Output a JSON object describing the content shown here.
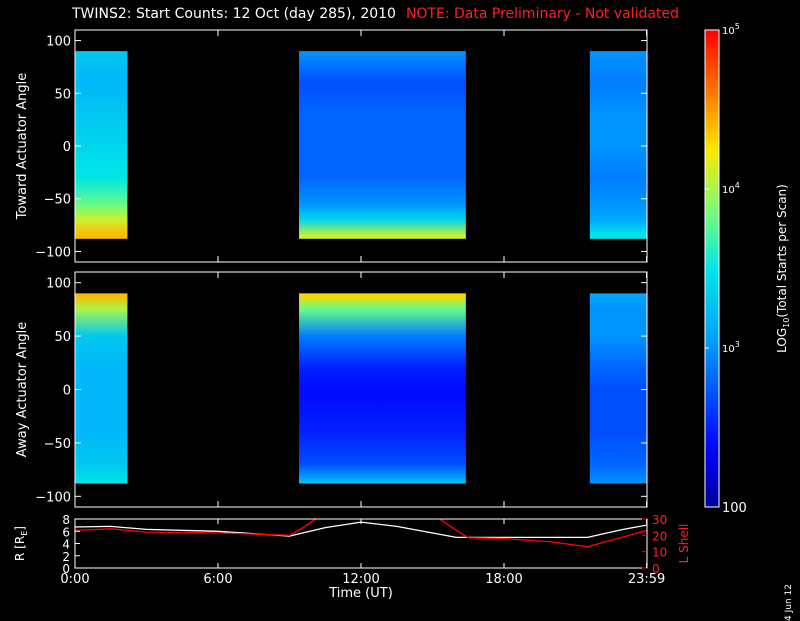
{
  "header": {
    "title": "TWINS2: Start Counts: 12 Oct (day 285), 2010",
    "note": "NOTE: Data Preliminary - Not validated"
  },
  "footer": {
    "date_stamp": "4 Jun 12"
  },
  "colors": {
    "background": "#000000",
    "axes": "#ffffff",
    "note": "#ff2020",
    "r_line": "#ffffff",
    "l_shell_line": "#ff0000"
  },
  "chart_data": [
    {
      "type": "heatmap",
      "panel": "toward",
      "ylabel": "Toward Actuator Angle",
      "ylim": [
        -110,
        110
      ],
      "yticks": [
        100,
        50,
        0,
        -50,
        -100
      ],
      "y_tick_labels": [
        "100",
        "50",
        "0",
        "−50",
        "−100"
      ],
      "data_angle_range": [
        -88,
        90
      ],
      "xlim_hours": [
        0,
        24
      ],
      "data_intervals_hours": [
        [
          0.0,
          2.2
        ],
        [
          9.4,
          16.4
        ],
        [
          21.6,
          24.0
        ]
      ],
      "angle_profile": [
        {
          "angle": 90,
          "log10_counts": [
            3.3,
            3.0,
            3.0
          ]
        },
        {
          "angle": 60,
          "log10_counts": [
            3.2,
            2.7,
            2.9
          ]
        },
        {
          "angle": 30,
          "log10_counts": [
            3.3,
            2.8,
            3.0
          ]
        },
        {
          "angle": 0,
          "log10_counts": [
            3.4,
            2.8,
            3.0
          ]
        },
        {
          "angle": -30,
          "log10_counts": [
            3.5,
            2.8,
            2.9
          ]
        },
        {
          "angle": -55,
          "log10_counts": [
            3.8,
            3.0,
            3.0
          ]
        },
        {
          "angle": -70,
          "log10_counts": [
            4.1,
            3.4,
            3.1
          ]
        },
        {
          "angle": -85,
          "log10_counts": [
            4.4,
            4.1,
            3.5
          ]
        }
      ]
    },
    {
      "type": "heatmap",
      "panel": "away",
      "ylabel": "Away Actuator Angle",
      "ylim": [
        -110,
        110
      ],
      "yticks": [
        100,
        50,
        0,
        -50,
        -100
      ],
      "y_tick_labels": [
        "100",
        "50",
        "0",
        "−50",
        "−100"
      ],
      "data_angle_range": [
        -88,
        90
      ],
      "xlim_hours": [
        0,
        24
      ],
      "data_intervals_hours": [
        [
          0.0,
          2.2
        ],
        [
          9.4,
          16.4
        ],
        [
          21.6,
          24.0
        ]
      ],
      "angle_profile": [
        {
          "angle": 88,
          "log10_counts": [
            4.4,
            4.3,
            3.1
          ]
        },
        {
          "angle": 75,
          "log10_counts": [
            4.0,
            3.8,
            3.0
          ]
        },
        {
          "angle": 50,
          "log10_counts": [
            3.3,
            2.9,
            3.0
          ]
        },
        {
          "angle": 20,
          "log10_counts": [
            3.2,
            2.5,
            2.8
          ]
        },
        {
          "angle": 0,
          "log10_counts": [
            3.2,
            2.4,
            2.7
          ]
        },
        {
          "angle": -40,
          "log10_counts": [
            3.2,
            2.5,
            2.7
          ]
        },
        {
          "angle": -70,
          "log10_counts": [
            3.3,
            2.7,
            2.8
          ]
        },
        {
          "angle": -88,
          "log10_counts": [
            3.5,
            3.3,
            3.0
          ]
        }
      ]
    },
    {
      "type": "line",
      "panel": "orbit",
      "ylabel": "R [RE]",
      "ylabel_main": "R [R",
      "ylabel_sub": "E",
      "ylabel_close": "]",
      "ylim": [
        0,
        8
      ],
      "yticks": [
        0,
        2,
        4,
        6,
        8
      ],
      "y2label": "L Shell",
      "y2lim": [
        0,
        30
      ],
      "y2ticks": [
        0,
        10,
        20,
        30
      ],
      "series": [
        {
          "axis": "left",
          "x": [
            0,
            1.5,
            3,
            6,
            9,
            10.5,
            12,
            13.5,
            16,
            18,
            20,
            21.5,
            23,
            24
          ],
          "values": [
            6.7,
            6.8,
            6.3,
            6.0,
            5.2,
            6.6,
            7.5,
            6.8,
            5.0,
            5.0,
            5.0,
            5.0,
            6.3,
            7.0
          ]
        },
        {
          "axis": "right",
          "x": [
            0,
            1.5,
            3,
            6,
            9,
            9.6,
            10.2,
            15.2,
            15.8,
            16.5,
            18,
            20,
            21.5,
            23,
            24
          ],
          "values": [
            23,
            24,
            22,
            21.5,
            20,
            25,
            31,
            31,
            25,
            18.5,
            18,
            16,
            13,
            19,
            23
          ]
        }
      ],
      "xlabel": "Time (UT)",
      "xticks_hours": [
        0,
        6,
        12,
        18,
        23.9833
      ],
      "x_tick_labels": [
        "0:00",
        "6:00",
        "12:00",
        "18:00",
        "23:59"
      ]
    }
  ],
  "colorbar": {
    "label_prefix": "LOG",
    "label_sub": "10",
    "label_suffix": "(Total Starts per Scan)",
    "ticks": [
      {
        "value": 100,
        "label": "100"
      },
      {
        "value": 1000,
        "label": "10",
        "sup": "3"
      },
      {
        "value": 10000,
        "label": "10",
        "sup": "4"
      },
      {
        "value": 100000,
        "label": "10",
        "sup": "5"
      }
    ],
    "range_log10": [
      2,
      5
    ]
  }
}
